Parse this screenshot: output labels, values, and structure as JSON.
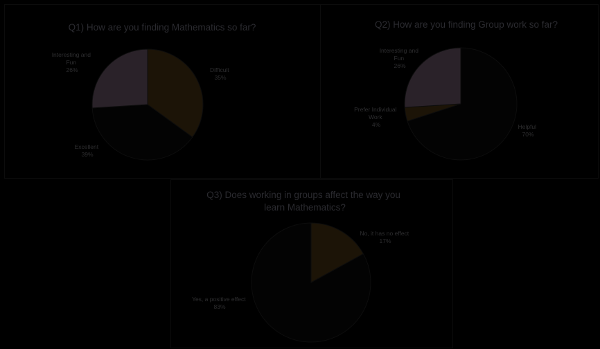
{
  "colors": {
    "background": "#000000",
    "slice_brown": "#1c1407",
    "slice_mauve": "#2a2229",
    "slice_black": "#030303",
    "slice_edge": "#0d0d0d",
    "text": "#2e2e30"
  },
  "chart_data": [
    {
      "type": "pie",
      "title": "Q1) How are you finding Mathematics so far?",
      "slices": [
        {
          "label_lines": [
            "Difficult"
          ],
          "value": 35,
          "value_label": "35%",
          "color": "#1c1407"
        },
        {
          "label_lines": [
            "Excellent"
          ],
          "value": 39,
          "value_label": "39%",
          "color": "#030303"
        },
        {
          "label_lines": [
            "Interesting and",
            "Fun"
          ],
          "value": 26,
          "value_label": "26%",
          "color": "#2a2229"
        }
      ]
    },
    {
      "type": "pie",
      "title": "Q2) How are you finding Group work so far?",
      "slices": [
        {
          "label_lines": [
            "Helpful"
          ],
          "value": 70,
          "value_label": "70%",
          "color": "#030303"
        },
        {
          "label_lines": [
            "Prefer Individual",
            "Work"
          ],
          "value": 4,
          "value_label": "4%",
          "color": "#1c1407"
        },
        {
          "label_lines": [
            "Interesting and",
            "Fun"
          ],
          "value": 26,
          "value_label": "26%",
          "color": "#2a2229"
        }
      ]
    },
    {
      "type": "pie",
      "title_lines": [
        "Q3) Does working in groups affect the way you",
        "learn Mathematics?"
      ],
      "slices": [
        {
          "label_lines": [
            "No, it has no effect"
          ],
          "value": 17,
          "value_label": "17%",
          "color": "#1c1407"
        },
        {
          "label_lines": [
            "Yes, a positive effect"
          ],
          "value": 83,
          "value_label": "83%",
          "color": "#030303"
        }
      ]
    }
  ]
}
